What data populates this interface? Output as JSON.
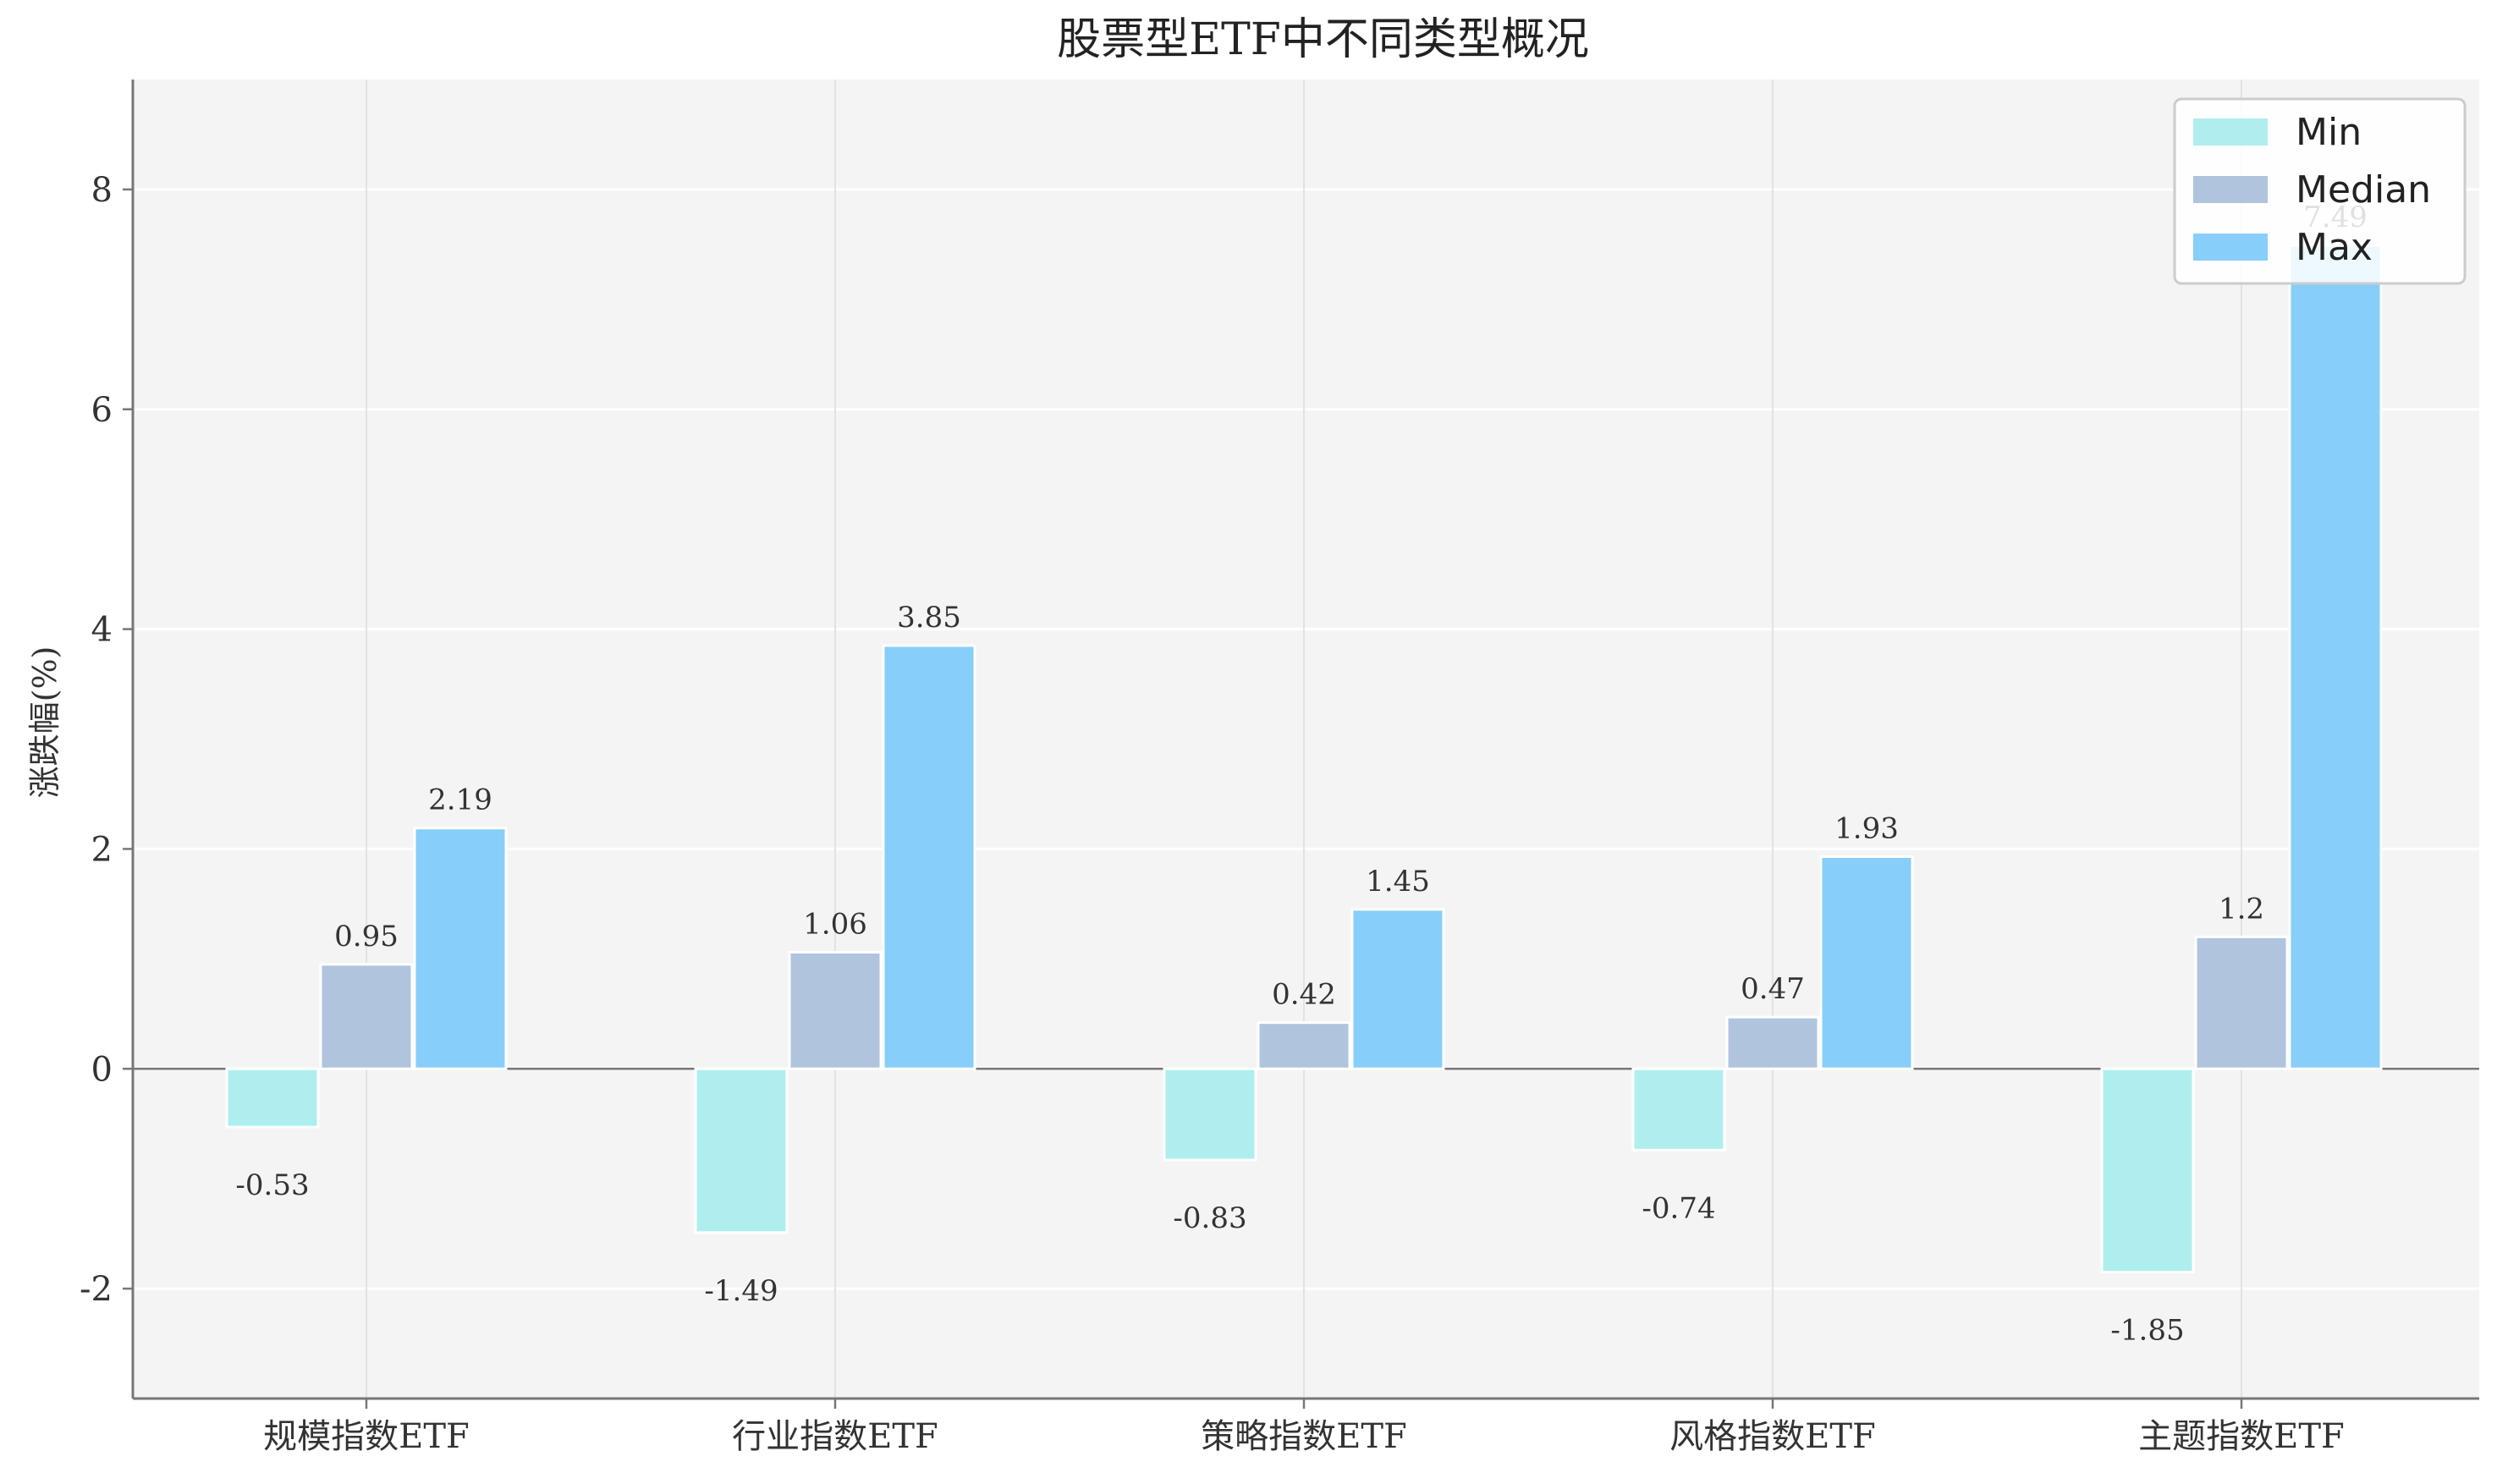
{
  "chart_data": {
    "type": "bar",
    "title": "股票型ETF中不同类型概况",
    "xlabel": "",
    "ylabel": "涨跌幅(%)",
    "categories": [
      "规模指数ETF",
      "行业指数ETF",
      "策略指数ETF",
      "风格指数ETF",
      "主题指数ETF"
    ],
    "series": [
      {
        "name": "Min",
        "values": [
          -0.53,
          -1.49,
          -0.83,
          -0.74,
          -1.85
        ],
        "labels": [
          "-0.53",
          "-1.49",
          "-0.83",
          "-0.74",
          "-1.85"
        ],
        "color": "#AFEEEE"
      },
      {
        "name": "Median",
        "values": [
          0.95,
          1.06,
          0.42,
          0.47,
          1.2
        ],
        "labels": [
          "0.95",
          "1.06",
          "0.42",
          "0.47",
          "1.2"
        ],
        "color": "#B0C4DE"
      },
      {
        "name": "Max",
        "values": [
          2.19,
          3.85,
          1.45,
          1.93,
          7.49
        ],
        "labels": [
          "2.19",
          "3.85",
          "1.45",
          "1.93",
          "7.49"
        ],
        "color": "#87CEFA"
      }
    ],
    "ylim": [
      -3,
      9
    ],
    "yticks": [
      -2,
      0,
      2,
      4,
      6,
      8
    ],
    "grid": true,
    "legend": "top-right",
    "background": "#F4F4F4"
  }
}
